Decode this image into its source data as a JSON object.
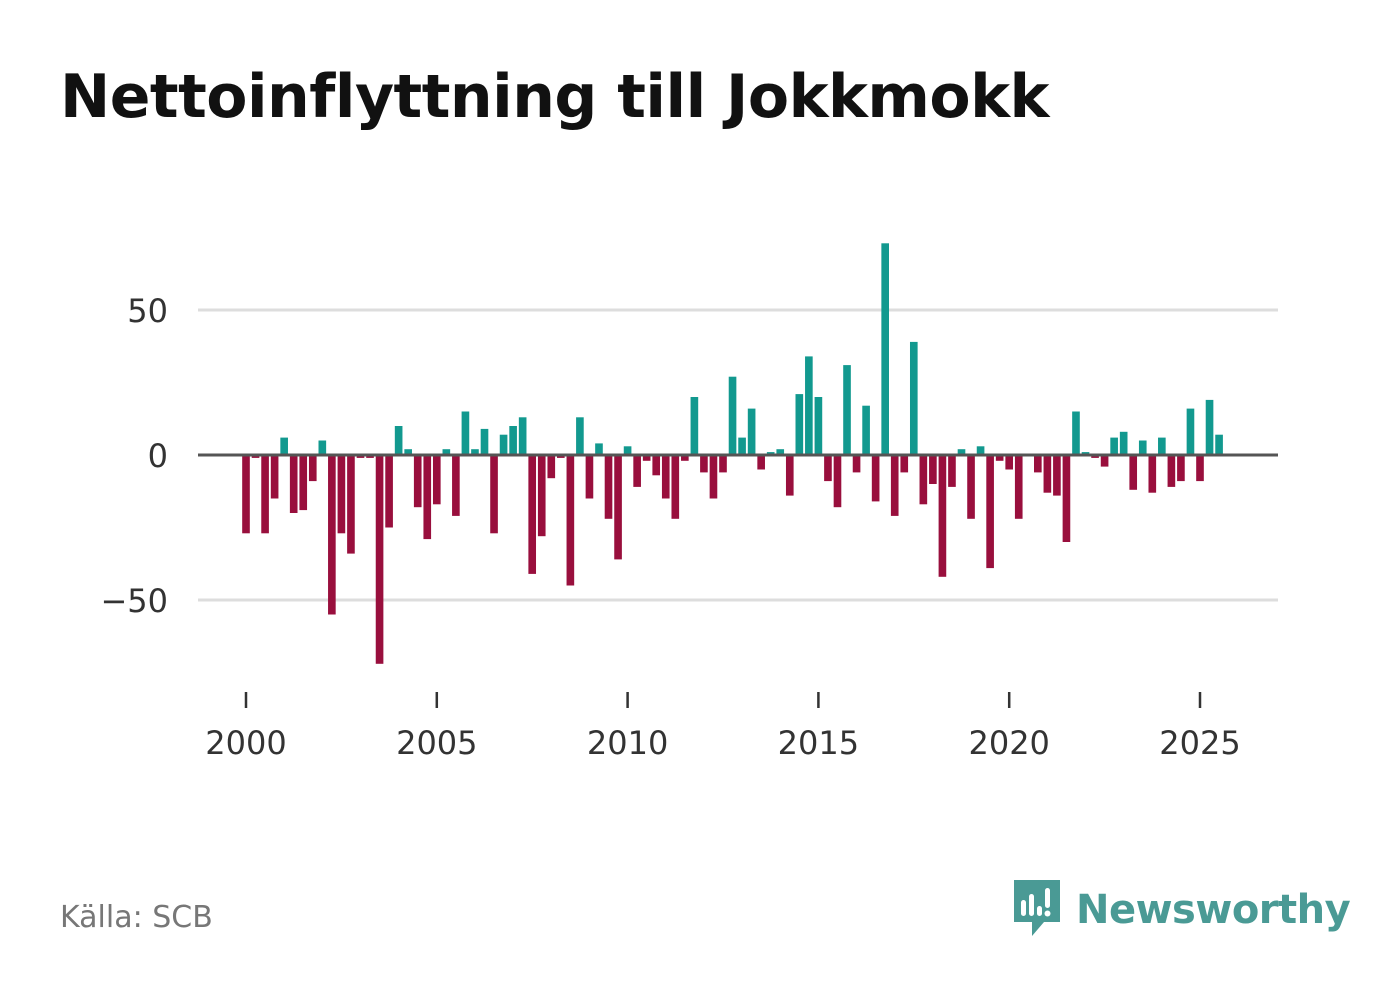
{
  "title": "Nettoinflyttning till Jokkmokk",
  "source": "Källa: SCB",
  "brand": {
    "name": "Newsworthy",
    "icon": "newsworthy-logo-icon"
  },
  "colors": {
    "positive": "#12998f",
    "negative": "#990f3d",
    "zero_line": "#555555",
    "grid": "#dddddd",
    "tick_text": "#333333",
    "brand": "#4a9a95"
  },
  "chart_data": {
    "type": "bar",
    "title": "Nettoinflyttning till Jokkmokk",
    "xlabel": "",
    "ylabel": "",
    "x_start": 2000,
    "x_step": 0.25,
    "xlim": [
      1998.8,
      2027.1
    ],
    "ylim": [
      -80,
      80
    ],
    "yticks": [
      50,
      0,
      -50
    ],
    "ytick_labels": [
      "50",
      "0",
      "−50"
    ],
    "xticks": [
      2000,
      2005,
      2010,
      2015,
      2020,
      2025
    ],
    "xtick_labels": [
      "2000",
      "2005",
      "2010",
      "2015",
      "2020",
      "2025"
    ],
    "grid": true,
    "values": [
      -27,
      -1,
      -27,
      -15,
      6,
      -20,
      -19,
      -9,
      5,
      -55,
      -27,
      -34,
      -1,
      -1,
      -72,
      -25,
      10,
      2,
      -18,
      -29,
      -17,
      2,
      -21,
      15,
      2,
      9,
      -27,
      7,
      10,
      13,
      -41,
      -28,
      -8,
      -1,
      -45,
      13,
      -15,
      4,
      -22,
      -36,
      3,
      -11,
      -2,
      -7,
      -15,
      -22,
      -2,
      20,
      -6,
      -15,
      -6,
      27,
      6,
      16,
      -5,
      1,
      2,
      -14,
      21,
      34,
      20,
      -9,
      -18,
      31,
      -6,
      17,
      -16,
      73,
      -21,
      -6,
      39,
      -17,
      -10,
      -42,
      -11,
      2,
      -22,
      3,
      -39,
      -2,
      -5,
      -22,
      0,
      -6,
      -13,
      -14,
      -30,
      15,
      1,
      -1,
      -4,
      6,
      8,
      -12,
      5,
      -13,
      6,
      -11,
      -9,
      16,
      -9,
      19,
      7
    ]
  }
}
